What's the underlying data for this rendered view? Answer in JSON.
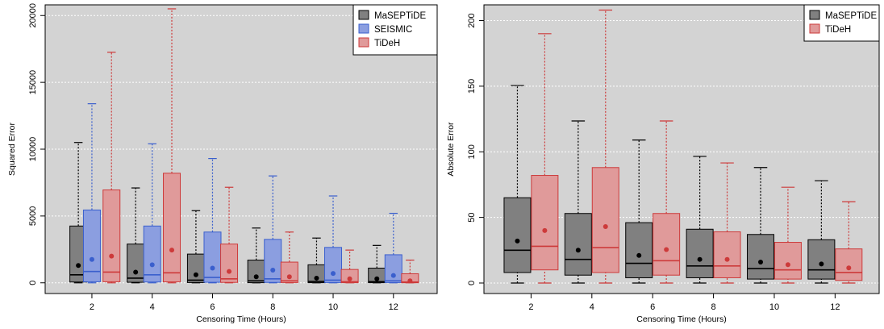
{
  "chart_data": [
    {
      "type": "box",
      "xlabel": "Censoring Time (Hours)",
      "ylabel": "Squared Error",
      "xticks": [
        2,
        4,
        6,
        8,
        10,
        12
      ],
      "ylim": [
        -800,
        20800
      ],
      "yticks": [
        0,
        5000,
        10000,
        15000,
        20000
      ],
      "grid": true,
      "legend_position": "top-right",
      "series": [
        {
          "name": "MaSEPTiDE",
          "color": "#808080",
          "edge": "#000000",
          "groups": [
            {
              "x": 1.55,
              "min": 0,
              "q1": 60,
              "median": 600,
              "q3": 4250,
              "max": 10500,
              "mean": 1300
            },
            {
              "x": 3.45,
              "min": 0,
              "q1": 40,
              "median": 350,
              "q3": 2900,
              "max": 7100,
              "mean": 800
            },
            {
              "x": 5.45,
              "min": 0,
              "q1": 20,
              "median": 200,
              "q3": 2150,
              "max": 5400,
              "mean": 600
            },
            {
              "x": 7.45,
              "min": 0,
              "q1": 10,
              "median": 150,
              "q3": 1700,
              "max": 4100,
              "mean": 450
            },
            {
              "x": 9.45,
              "min": 0,
              "q1": 10,
              "median": 100,
              "q3": 1350,
              "max": 3350,
              "mean": 350
            },
            {
              "x": 11.45,
              "min": 0,
              "q1": 10,
              "median": 90,
              "q3": 1100,
              "max": 2800,
              "mean": 300
            }
          ]
        },
        {
          "name": "SEISMIC",
          "color": "#8b9ee0",
          "edge": "#3a5fcd",
          "groups": [
            {
              "x": 2.0,
              "min": 0,
              "q1": 80,
              "median": 850,
              "q3": 5450,
              "max": 13400,
              "mean": 1750
            },
            {
              "x": 4.0,
              "min": 0,
              "q1": 60,
              "median": 600,
              "q3": 4250,
              "max": 10400,
              "mean": 1350
            },
            {
              "x": 6.0,
              "min": 0,
              "q1": 40,
              "median": 400,
              "q3": 3800,
              "max": 9300,
              "mean": 1100
            },
            {
              "x": 8.0,
              "min": 0,
              "q1": 30,
              "median": 300,
              "q3": 3250,
              "max": 8000,
              "mean": 950
            },
            {
              "x": 10.0,
              "min": 0,
              "q1": 20,
              "median": 200,
              "q3": 2650,
              "max": 6500,
              "mean": 700
            },
            {
              "x": 12.0,
              "min": 0,
              "q1": 20,
              "median": 150,
              "q3": 2100,
              "max": 5200,
              "mean": 550
            }
          ]
        },
        {
          "name": "TiDeH",
          "color": "#e09a9a",
          "edge": "#cd3a3a",
          "groups": [
            {
              "x": 2.65,
              "min": 0,
              "q1": 80,
              "median": 800,
              "q3": 6950,
              "max": 17250,
              "mean": 2000
            },
            {
              "x": 4.65,
              "min": 0,
              "q1": 70,
              "median": 750,
              "q3": 8200,
              "max": 20500,
              "mean": 2450
            },
            {
              "x": 6.55,
              "min": 0,
              "q1": 30,
              "median": 300,
              "q3": 2900,
              "max": 7150,
              "mean": 850
            },
            {
              "x": 8.55,
              "min": 0,
              "q1": 20,
              "median": 150,
              "q3": 1550,
              "max": 3800,
              "mean": 450
            },
            {
              "x": 10.55,
              "min": 0,
              "q1": 10,
              "median": 80,
              "q3": 1000,
              "max": 2450,
              "mean": 300
            },
            {
              "x": 12.55,
              "min": 0,
              "q1": 5,
              "median": 60,
              "q3": 680,
              "max": 1700,
              "mean": 150
            }
          ]
        }
      ]
    },
    {
      "type": "box",
      "xlabel": "Censoring Time (Hours)",
      "ylabel": "Absolute Error",
      "xticks": [
        2,
        4,
        6,
        8,
        10,
        12
      ],
      "ylim": [
        -8,
        212
      ],
      "yticks": [
        0,
        50,
        100,
        150,
        200
      ],
      "grid": true,
      "legend_position": "top-right",
      "series": [
        {
          "name": "MaSEPTiDE",
          "color": "#808080",
          "edge": "#000000",
          "groups": [
            {
              "x": 1.55,
              "min": 0,
              "q1": 8,
              "median": 25,
              "q3": 65,
              "max": 150.5,
              "mean": 32
            },
            {
              "x": 3.55,
              "min": 0,
              "q1": 6,
              "median": 18,
              "q3": 53,
              "max": 123.5,
              "mean": 25
            },
            {
              "x": 5.55,
              "min": 0,
              "q1": 4,
              "median": 15,
              "q3": 46,
              "max": 109,
              "mean": 21
            },
            {
              "x": 7.55,
              "min": 0,
              "q1": 4,
              "median": 13,
              "q3": 41,
              "max": 96.5,
              "mean": 18
            },
            {
              "x": 9.55,
              "min": 0,
              "q1": 3,
              "median": 11,
              "q3": 37,
              "max": 88,
              "mean": 16
            },
            {
              "x": 11.55,
              "min": 0,
              "q1": 3,
              "median": 10,
              "q3": 33,
              "max": 78,
              "mean": 14.5
            }
          ]
        },
        {
          "name": "TiDeH",
          "color": "#e09a9a",
          "edge": "#cd3a3a",
          "groups": [
            {
              "x": 2.45,
              "min": 0,
              "q1": 10,
              "median": 28,
              "q3": 82,
              "max": 190,
              "mean": 40
            },
            {
              "x": 4.45,
              "min": 0,
              "q1": 8,
              "median": 27,
              "q3": 88,
              "max": 208,
              "mean": 43
            },
            {
              "x": 6.45,
              "min": 0,
              "q1": 6,
              "median": 17,
              "q3": 53,
              "max": 123.5,
              "mean": 25.5
            },
            {
              "x": 8.45,
              "min": 0,
              "q1": 4,
              "median": 13,
              "q3": 39,
              "max": 91.5,
              "mean": 18
            },
            {
              "x": 10.45,
              "min": 0,
              "q1": 3,
              "median": 10,
              "q3": 31,
              "max": 73,
              "mean": 14
            },
            {
              "x": 12.45,
              "min": 0,
              "q1": 2,
              "median": 8,
              "q3": 26,
              "max": 62,
              "mean": 11.5
            }
          ]
        }
      ]
    }
  ]
}
